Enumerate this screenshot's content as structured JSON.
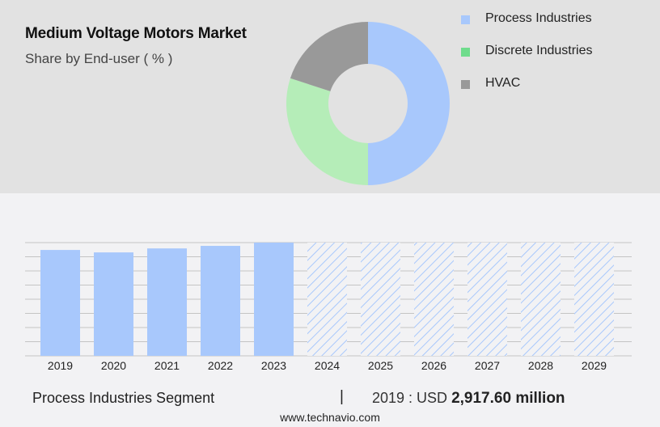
{
  "header": {
    "title": "Medium Voltage Motors Market",
    "subtitle": "Share by End-user ( % )"
  },
  "legend": [
    {
      "label": "Process Industries",
      "color": "#a8c8fc"
    },
    {
      "label": "Discrete Industries",
      "color": "#6fdc8c"
    },
    {
      "label": "HVAC",
      "color": "#999999"
    }
  ],
  "footer": {
    "segment": "Process Industries Segment",
    "separator": "|",
    "value_prefix": "2019 : USD",
    "value": "2,917.60 million",
    "url": "www.technavio.com"
  },
  "chart_data": [
    {
      "type": "pie",
      "title": "Medium Voltage Motors Market",
      "subtitle": "Share by End-user ( % )",
      "donut": true,
      "categories": [
        "Process Industries",
        "Discrete Industries",
        "HVAC"
      ],
      "values": [
        50,
        30,
        20
      ],
      "colors": [
        "#a8c8fc",
        "#b5edb8",
        "#999999"
      ],
      "legend_position": "right"
    },
    {
      "type": "bar",
      "title": "Process Industries Segment",
      "categories": [
        "2019",
        "2020",
        "2021",
        "2022",
        "2023",
        "2024",
        "2025",
        "2026",
        "2027",
        "2028",
        "2029"
      ],
      "values": [
        2917.6,
        2850,
        2960,
        3030,
        3120,
        null,
        null,
        null,
        null,
        null,
        null
      ],
      "forecast_categories": [
        "2024",
        "2025",
        "2026",
        "2027",
        "2028",
        "2029"
      ],
      "forecast_style": "hatched",
      "xlabel": "",
      "ylabel": "",
      "grid": true,
      "annotation": "2019 : USD 2,917.60 million",
      "bar_color": "#a8c8fc"
    }
  ]
}
